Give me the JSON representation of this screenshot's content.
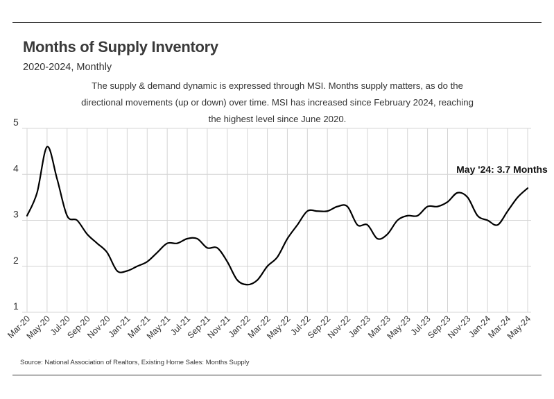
{
  "header": {
    "title": "Months of Supply Inventory",
    "subtitle": "2020-2024, Monthly",
    "description": "The supply & demand dynamic is expressed through MSI. Months supply matters, as do the directional movements (up or down) over time. MSI has increased since February 2024, reaching the highest level since June 2020."
  },
  "footer": {
    "source": "Source:  National Association of Realtors, Existing Home Sales: Months Supply"
  },
  "chart_data": {
    "type": "line",
    "title": "Months of Supply Inventory",
    "subtitle": "2020-2024, Monthly",
    "xlabel": "",
    "ylabel": "",
    "ylim": [
      1,
      5
    ],
    "yticks": [
      1,
      2,
      3,
      4,
      5
    ],
    "grid": true,
    "line_color": "#000000",
    "x": [
      "Mar-20",
      "Apr-20",
      "May-20",
      "Jun-20",
      "Jul-20",
      "Aug-20",
      "Sep-20",
      "Oct-20",
      "Nov-20",
      "Dec-20",
      "Jan-21",
      "Feb-21",
      "Mar-21",
      "Apr-21",
      "May-21",
      "Jun-21",
      "Jul-21",
      "Aug-21",
      "Sep-21",
      "Oct-21",
      "Nov-21",
      "Dec-21",
      "Jan-22",
      "Feb-22",
      "Mar-22",
      "Apr-22",
      "May-22",
      "Jun-22",
      "Jul-22",
      "Aug-22",
      "Sep-22",
      "Oct-22",
      "Nov-22",
      "Dec-22",
      "Jan-23",
      "Feb-23",
      "Mar-23",
      "Apr-23",
      "May-23",
      "Jun-23",
      "Jul-23",
      "Aug-23",
      "Sep-23",
      "Oct-23",
      "Nov-23",
      "Dec-23",
      "Jan-24",
      "Feb-24",
      "Mar-24",
      "Apr-24",
      "May-24"
    ],
    "x_tick_labels": [
      "Mar-20",
      "May-20",
      "Jul-20",
      "Sep-20",
      "Nov-20",
      "Jan-21",
      "Mar-21",
      "May-21",
      "Jul-21",
      "Sep-21",
      "Nov-21",
      "Jan-22",
      "Mar-22",
      "May-22",
      "Jul-22",
      "Sep-22",
      "Nov-22",
      "Jan-23",
      "Mar-23",
      "May-23",
      "Jul-23",
      "Sep-23",
      "Nov-23",
      "Jan-24",
      "Mar-24",
      "May-24"
    ],
    "series": [
      {
        "name": "Months of Supply",
        "values": [
          3.1,
          3.6,
          4.6,
          3.9,
          3.1,
          3.0,
          2.7,
          2.5,
          2.3,
          1.9,
          1.9,
          2.0,
          2.1,
          2.3,
          2.5,
          2.5,
          2.6,
          2.6,
          2.4,
          2.4,
          2.1,
          1.7,
          1.6,
          1.7,
          2.0,
          2.2,
          2.6,
          2.9,
          3.2,
          3.2,
          3.2,
          3.3,
          3.3,
          2.9,
          2.9,
          2.6,
          2.7,
          3.0,
          3.1,
          3.1,
          3.3,
          3.3,
          3.4,
          3.6,
          3.5,
          3.1,
          3.0,
          2.9,
          3.2,
          3.5,
          3.7
        ]
      }
    ],
    "annotation": {
      "text": "May '24: 3.7 Months",
      "x": "May-24",
      "y": 3.7
    }
  }
}
